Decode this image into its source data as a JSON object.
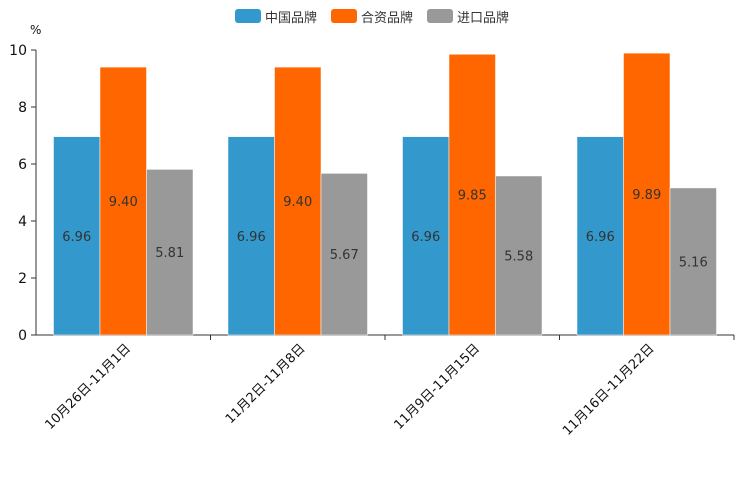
{
  "chart_data": {
    "type": "bar",
    "title": "",
    "unit": "%",
    "xlabel": "",
    "ylabel": "%",
    "ylim": [
      0,
      10
    ],
    "yticks": [
      0,
      2,
      4,
      6,
      8,
      10
    ],
    "grid": false,
    "legend_position": "top-center",
    "categories": [
      "10月26日-11月1日",
      "11月2日-11月8日",
      "11月9日-11月15日",
      "11月16日-11月22日"
    ],
    "series": [
      {
        "name": "中国品牌",
        "color": "#3399cc",
        "values": [
          6.96,
          6.96,
          6.96,
          6.96
        ],
        "labels": [
          "6.96",
          "6.96",
          "6.96",
          "6.96"
        ]
      },
      {
        "name": "合资品牌",
        "color": "#ff6600",
        "values": [
          9.4,
          9.4,
          9.85,
          9.89
        ],
        "labels": [
          "9.40",
          "9.40",
          "9.85",
          "9.89"
        ]
      },
      {
        "name": "进口品牌",
        "color": "#999999",
        "values": [
          5.81,
          5.67,
          5.58,
          5.16
        ],
        "labels": [
          "5.81",
          "5.67",
          "5.58",
          "5.16"
        ]
      }
    ]
  }
}
